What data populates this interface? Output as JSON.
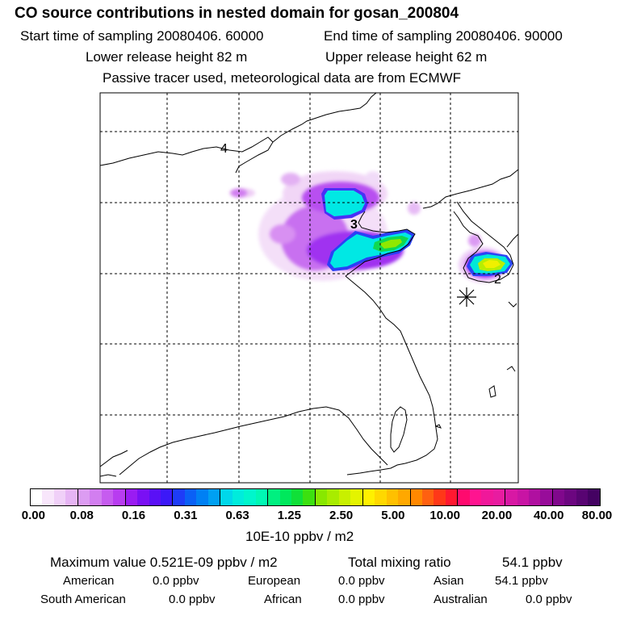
{
  "header": {
    "title": "CO  source contributions in nested domain for gosan_200804",
    "start_label": "Start time of sampling 20080406. 60000",
    "end_label": "End time of sampling 20080406. 90000",
    "lower_height": "Lower release height   82 m",
    "upper_height": "Upper release height   62 m",
    "tracer_note": "Passive tracer used, meteorological data are from ECMWF"
  },
  "map": {
    "region_labels": [
      {
        "id": "region-label-4",
        "text": "4"
      },
      {
        "id": "region-label-3",
        "text": "3"
      },
      {
        "id": "region-label-2",
        "text": "2"
      }
    ],
    "receptor_marker": "asterisk"
  },
  "colorbar": {
    "ticks": [
      "0.00",
      "0.08",
      "0.16",
      "0.31",
      "0.63",
      "1.25",
      "2.50",
      "5.00",
      "10.00",
      "20.00",
      "40.00",
      "80.00"
    ],
    "unit_label": "10E-10 ppbv / m2",
    "colors": [
      "#ffffff",
      "#f8e6fb",
      "#f0d0f8",
      "#e6b4f4",
      "#dc9cf2",
      "#d27ef0",
      "#c65cef",
      "#b83cf0",
      "#9a1cf2",
      "#7a10f4",
      "#5a10f6",
      "#3c18f8",
      "#1e3cf8",
      "#0a60f6",
      "#0080f4",
      "#00a0f2",
      "#00d8ea",
      "#00ecdc",
      "#00f6cc",
      "#00f8b4",
      "#00f080",
      "#00e85c",
      "#10e038",
      "#3ce010",
      "#88e800",
      "#a8ec00",
      "#c8f000",
      "#e4f400",
      "#fff000",
      "#ffd800",
      "#ffc000",
      "#ffa800",
      "#ff8800",
      "#ff6010",
      "#ff3818",
      "#ff1830",
      "#ff0a6e",
      "#ff1490",
      "#f0189a",
      "#e81ca0",
      "#d818a4",
      "#c814a4",
      "#b010a0",
      "#980c9a",
      "#80088c",
      "#6c0680",
      "#580472",
      "#440262"
    ]
  },
  "summary": {
    "max_value_label": "Maximum value  0.521E-09 ppbv / m2",
    "total_label": "Total mixing ratio",
    "total_value": "54.1 ppbv",
    "regions": [
      {
        "name": "American",
        "value": "0.0 ppbv"
      },
      {
        "name": "European",
        "value": "0.0 ppbv"
      },
      {
        "name": "Asian",
        "value": "54.1 ppbv"
      },
      {
        "name": "South American",
        "value": "0.0 ppbv"
      },
      {
        "name": "African",
        "value": "0.0 ppbv"
      },
      {
        "name": "Australian",
        "value": "0.0 ppbv"
      }
    ]
  }
}
